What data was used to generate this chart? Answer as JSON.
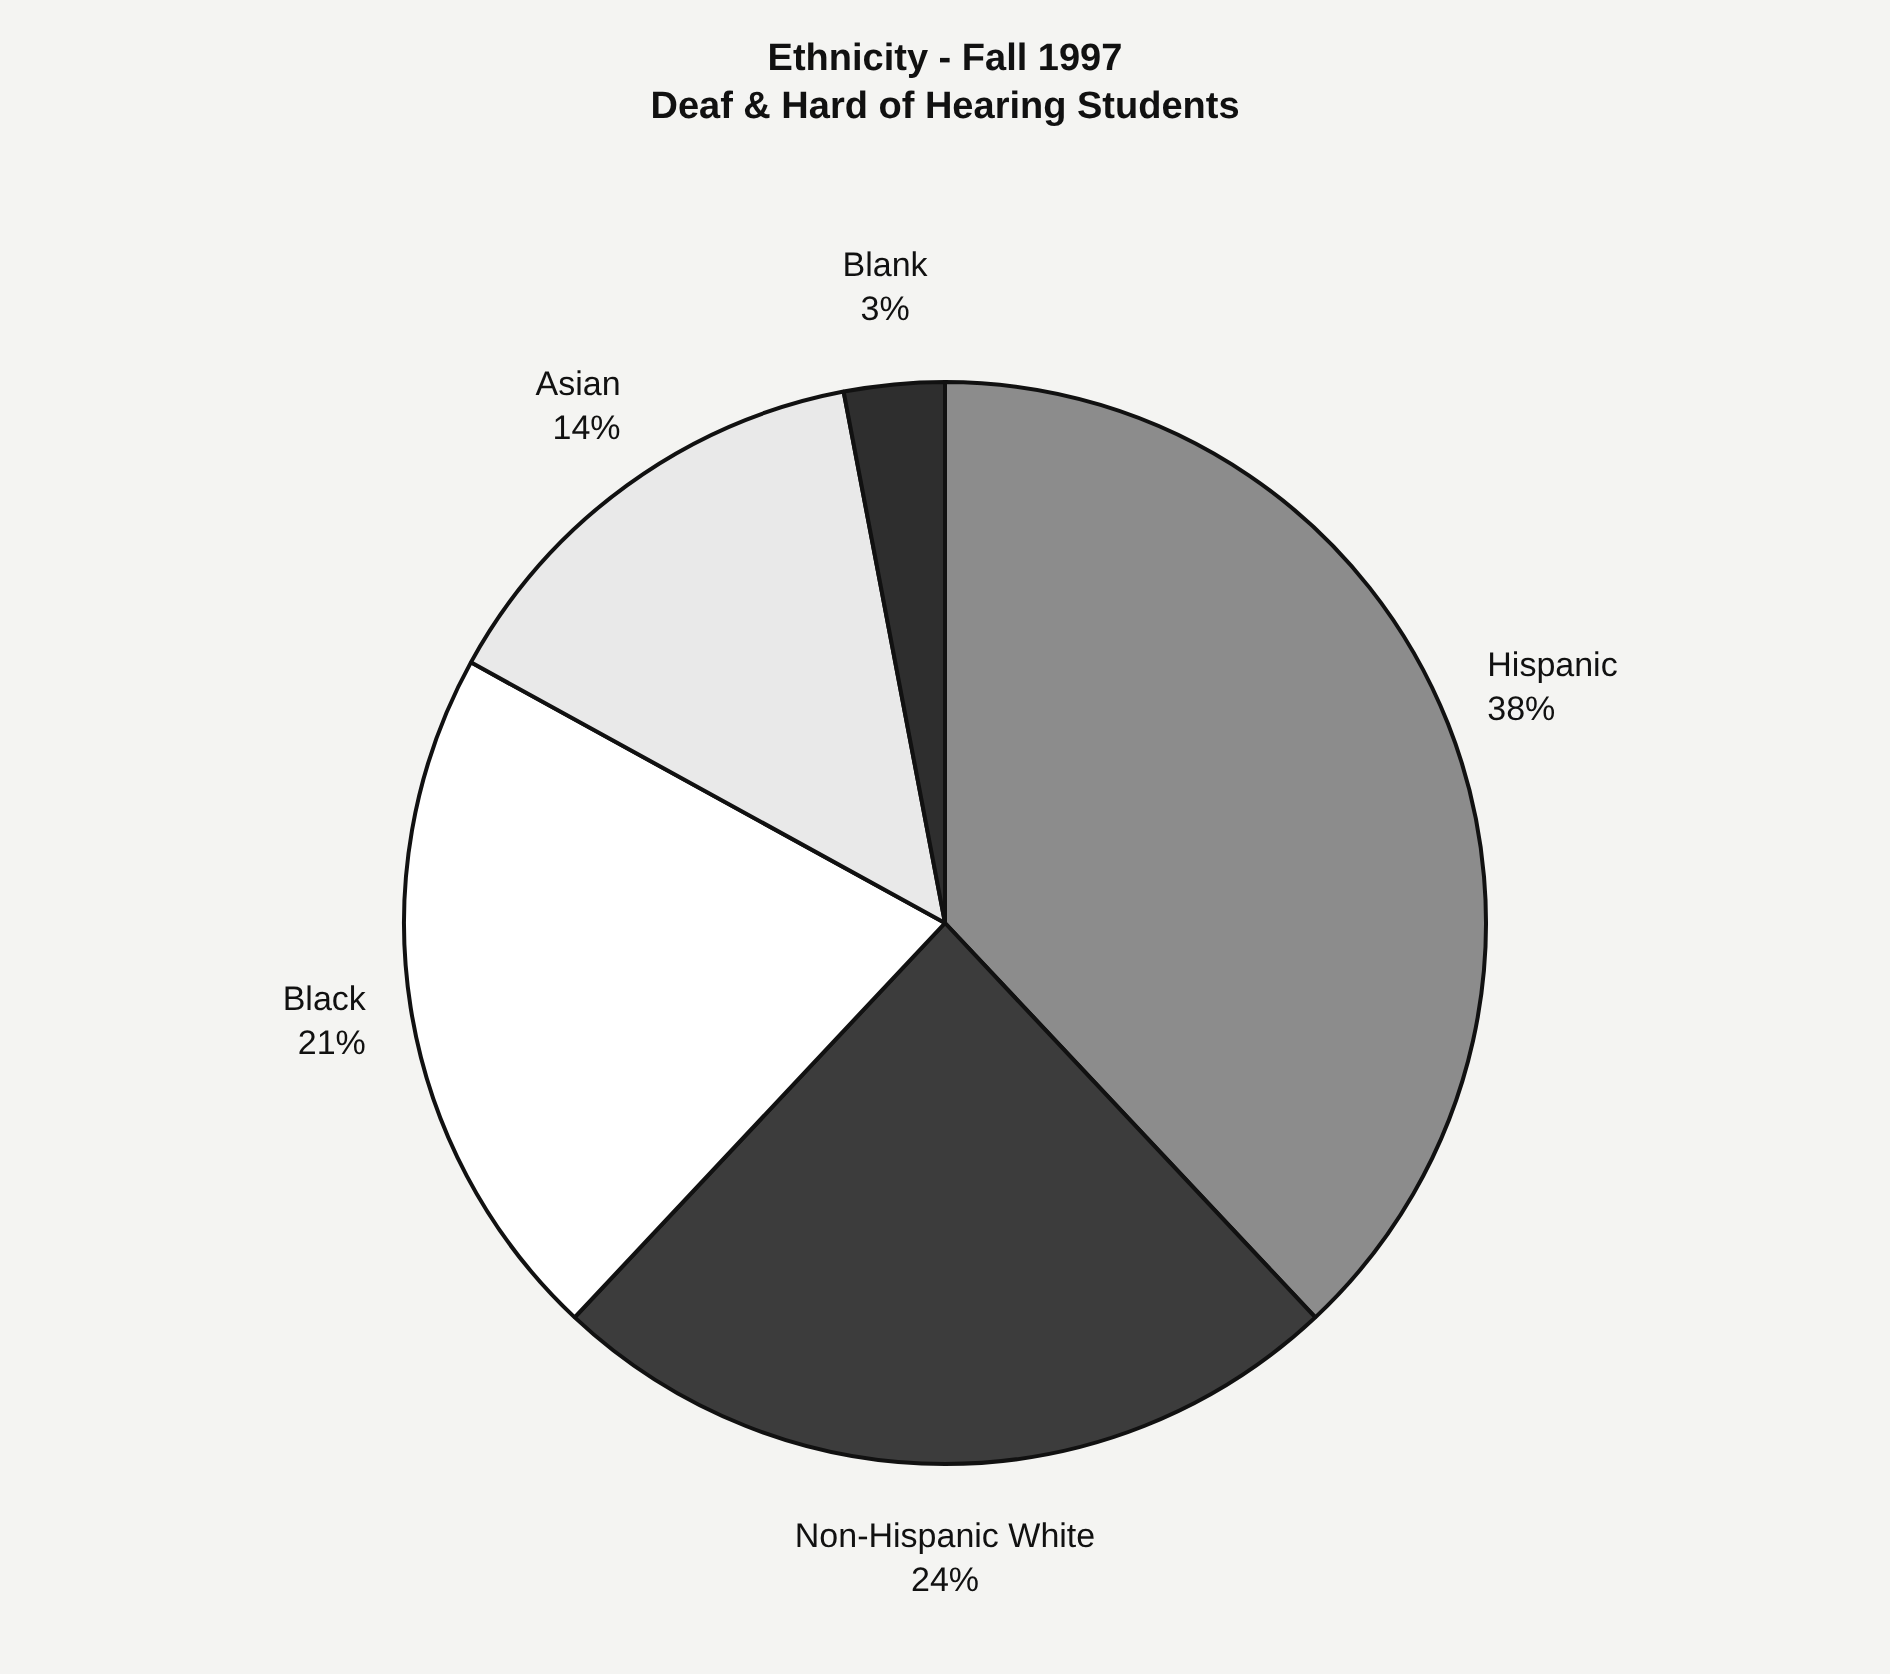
{
  "chart_data": {
    "type": "pie",
    "title": "Ethnicity - Fall 1997",
    "subtitle": "Deaf & Hard of Hearing Students",
    "categories": [
      "Hispanic",
      "Non-Hispanic White",
      "Black",
      "Asian",
      "Blank"
    ],
    "values": [
      38,
      24,
      21,
      14,
      3
    ],
    "colors": [
      "#8c8c8c",
      "#3c3c3c",
      "#ffffff",
      "#e9e9e9",
      "#2e2e2e"
    ],
    "value_labels": [
      "38%",
      "24%",
      "21%",
      "14%",
      "3%"
    ],
    "legend": false
  }
}
